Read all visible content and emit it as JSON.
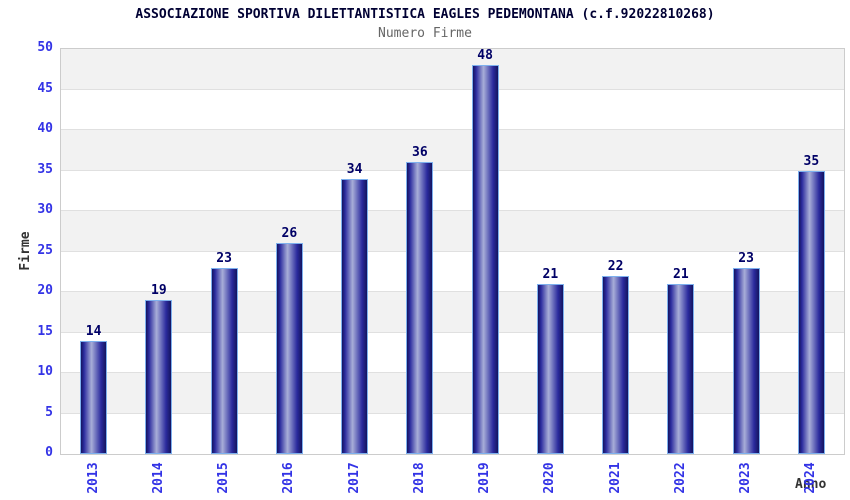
{
  "chart_data": {
    "type": "bar",
    "title": "ASSOCIAZIONE SPORTIVA DILETTANTISTICA EAGLES PEDEMONTANA (c.f.92022810268)",
    "subtitle": "Numero Firme",
    "xlabel": "Anno",
    "ylabel": "Firme",
    "categories": [
      "2013",
      "2014",
      "2015",
      "2016",
      "2017",
      "2018",
      "2019",
      "2020",
      "2021",
      "2022",
      "2023",
      "2024"
    ],
    "values": [
      14,
      19,
      23,
      26,
      34,
      36,
      48,
      21,
      22,
      21,
      23,
      35
    ],
    "ylim": [
      0,
      50
    ],
    "ytick_step": 5,
    "grid": true,
    "legend_position": "none",
    "colors": {
      "title": "#000033",
      "subtitle": "#666666",
      "axis_title": "#333333",
      "tick_label": "#3333e6",
      "value_label": "#000066",
      "bar_edge_dark": "#14145f",
      "bar_mid": "#2b2b9e",
      "bar_highlight": "#a8aed8",
      "bar_border": "#7db0ee",
      "band_gray": "#f2f2f2",
      "band_white": "#ffffff",
      "gridline": "#e0e0e0",
      "plot_border": "#cccccc"
    }
  }
}
